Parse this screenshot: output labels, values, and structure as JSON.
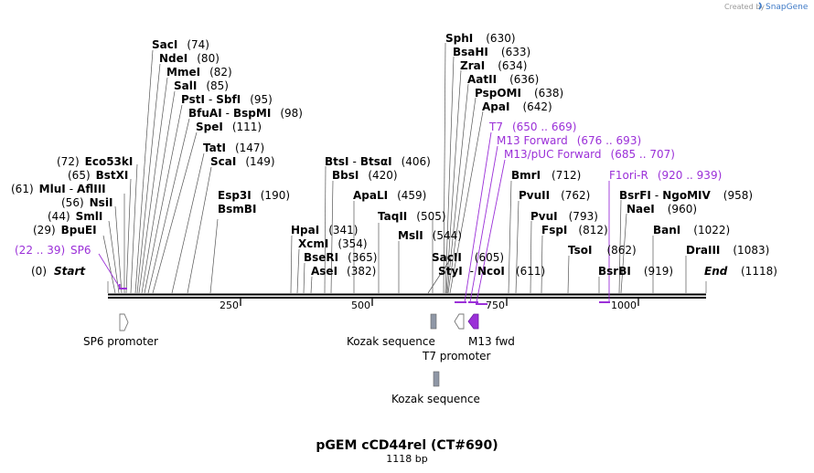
{
  "header": {
    "credit": "Created by",
    "brand": "SnapGene"
  },
  "map": {
    "title": "pGEM cCD44rel (CT#690)",
    "length_label": "1118 bp",
    "start_label": "Start",
    "end_label": "End"
  },
  "ruler": {
    "ticks": [
      "250",
      "500",
      "750",
      "1000"
    ],
    "start": {
      "name": "Start",
      "pos": "(0)"
    },
    "end": {
      "name": "End",
      "pos": "(1118)"
    }
  },
  "enzymes_left": [
    {
      "name": "Eco53kI",
      "pos": "(72)"
    },
    {
      "name": "BstXI",
      "pos": "(65)"
    },
    {
      "name": "MluI",
      "sep": "-",
      "name2": "AflIII",
      "pos": "(61)"
    },
    {
      "name": "NsiI",
      "pos": "(56)"
    },
    {
      "name": "SmlI",
      "pos": "(44)"
    },
    {
      "name": "BpuEI",
      "pos": "(29)"
    }
  ],
  "enzymes_right_stack": [
    {
      "name": "SacI",
      "pos": "(74)"
    },
    {
      "name": "NdeI",
      "pos": "(80)"
    },
    {
      "name": "MmeI",
      "pos": "(82)"
    },
    {
      "name": "SalI",
      "pos": "(85)"
    },
    {
      "name": "PstI",
      "sep": "-",
      "name2": "SbfI",
      "pos": "(95)"
    },
    {
      "name": "BfuAI",
      "sep": "-",
      "name2": "BspMI",
      "pos": "(98)"
    },
    {
      "name": "SpeI",
      "pos": "(111)"
    },
    {
      "name": "TatI",
      "pos": "(147)"
    },
    {
      "name": "ScaI",
      "pos": "(149)"
    }
  ],
  "enzymes_mid": [
    {
      "name": "Esp3I",
      "pos": "(190)"
    },
    {
      "name": "BsmBI"
    },
    {
      "name": "BtsI",
      "sep": "-",
      "name2": "BtsαI",
      "pos": "(406)"
    },
    {
      "name": "BbsI",
      "pos": "(420)"
    },
    {
      "name": "ApaLI",
      "pos": "(459)"
    },
    {
      "name": "TaqII",
      "pos": "(505)"
    },
    {
      "name": "MslI",
      "pos": "(544)"
    },
    {
      "name": "HpaI",
      "pos": "(341)"
    },
    {
      "name": "XcmI",
      "pos": "(354)"
    },
    {
      "name": "BseRI",
      "pos": "(365)"
    },
    {
      "name": "AseI",
      "pos": "(382)"
    }
  ],
  "enzymes_top_right": [
    {
      "name": "SphI",
      "pos": "(630)"
    },
    {
      "name": "BsaHI",
      "pos": "(633)"
    },
    {
      "name": "ZraI",
      "pos": "(634)"
    },
    {
      "name": "AatII",
      "pos": "(636)"
    },
    {
      "name": "PspOMI",
      "pos": "(638)"
    },
    {
      "name": "ApaI",
      "pos": "(642)"
    }
  ],
  "enzymes_bottom_right": [
    {
      "name": "SacII",
      "pos": "(605)"
    },
    {
      "name": "StyI",
      "sep": "-",
      "name2": "NcoI",
      "pos": "(611)"
    },
    {
      "name": "BmrI",
      "pos": "(712)"
    },
    {
      "name": "PvuII",
      "pos": "(762)"
    },
    {
      "name": "PvuI",
      "pos": "(793)"
    },
    {
      "name": "FspI",
      "pos": "(812)"
    },
    {
      "name": "TsoI",
      "pos": "(862)"
    },
    {
      "name": "BsrBI",
      "pos": "(919)"
    },
    {
      "name": "BsrFI",
      "sep": "-",
      "name2": "NgoMIV",
      "pos": "(958)"
    },
    {
      "name": "NaeI",
      "pos": "(960)"
    },
    {
      "name": "BanI",
      "pos": "(1022)"
    },
    {
      "name": "DraIII",
      "pos": "(1083)"
    }
  ],
  "primers": [
    {
      "name": "T7",
      "range": "(650 .. 669)"
    },
    {
      "name": "M13 Forward",
      "range": "(676 .. 693)"
    },
    {
      "name": "M13/pUC Forward",
      "range": "(685 .. 707)"
    },
    {
      "name": "F1ori-R",
      "range": "(920 .. 939)"
    },
    {
      "name": "SP6",
      "range": "(22 .. 39)"
    }
  ],
  "features": [
    {
      "name": "SP6 promoter"
    },
    {
      "name": "Kozak sequence"
    },
    {
      "name": "T7 promoter"
    },
    {
      "name": "M13 fwd"
    },
    {
      "name": "Kozak sequence"
    }
  ],
  "colors": {
    "primer": "#9b30d8",
    "line": "#000000",
    "kozak": "#8f97a6",
    "m13": "#9b30d8",
    "brand": "#3d79c6"
  }
}
